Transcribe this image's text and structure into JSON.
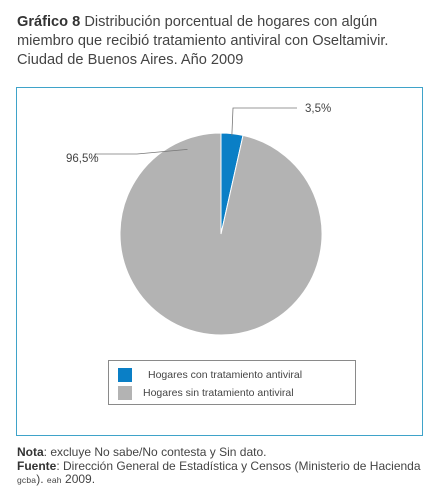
{
  "header": {
    "figure_label": "Gráfico 8",
    "title": "Distribución porcentual de hogares con algún miembro que recibió tratamiento antiviral con Oseltamivir. Ciudad de Buenos Aires. Año 2009"
  },
  "chart_data": {
    "type": "pie",
    "title": "",
    "slices": [
      {
        "name": "Hogares con tratamiento antiviral",
        "value": 3.5,
        "label": "3,5%",
        "color": "#0a7fc6"
      },
      {
        "name": "Hogares sin tratamiento antiviral",
        "value": 96.5,
        "label": "96,5%",
        "color": "#b3b3b3"
      }
    ],
    "legend_placement": "bottom"
  },
  "notes": {
    "nota_label": "Nota",
    "nota_text": ": excluye No sabe/No contesta y Sin dato.",
    "fuente_label": "Fuente",
    "fuente_text_1": ": Dirección General de Estadística y Censos (Ministerio de Hacienda ",
    "fuente_gcba": "gcba",
    "fuente_text_2": "). ",
    "fuente_eah": "eah",
    "fuente_text_3": " 2009."
  },
  "colors": {
    "frame_border": "#3fa3c9",
    "accent_blue": "#0a7fc6",
    "slice_gray": "#b3b3b3"
  }
}
